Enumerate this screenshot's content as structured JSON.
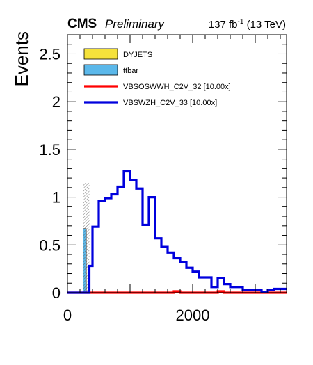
{
  "header": {
    "experiment": "CMS",
    "status": "Preliminary",
    "lumi": "137 fb",
    "lumi_exp": "-1",
    "energy": " (13 TeV)"
  },
  "chart_data": {
    "type": "histogram",
    "ylabel": "Events",
    "xlim": [
      0,
      3500
    ],
    "ylim": [
      0,
      2.7
    ],
    "x_ticks": [
      0,
      2000
    ],
    "y_ticks": [
      0,
      0.5,
      1,
      1.5,
      2,
      2.5
    ],
    "x_tick_labels": [
      "0",
      "2000"
    ],
    "y_tick_labels": [
      "0",
      "0.5",
      "1",
      "1.5",
      "2",
      "2.5"
    ],
    "bin_edges": [
      0,
      100,
      200,
      250,
      300,
      350,
      400,
      500,
      600,
      700,
      800,
      900,
      1000,
      1100,
      1200,
      1300,
      1400,
      1500,
      1600,
      1700,
      1800,
      1900,
      2000,
      2100,
      2200,
      2300,
      2400,
      2500,
      2600,
      2700,
      2800,
      2900,
      3000,
      3100,
      3200,
      3300,
      3400,
      3500
    ],
    "stack": [
      {
        "name": "DYJETS",
        "color": "#f5e23b",
        "values": [
          0,
          0,
          0,
          0,
          0,
          0,
          0,
          0,
          0,
          0,
          0,
          0,
          0,
          0,
          0,
          0,
          0,
          0,
          0,
          0,
          0,
          0,
          0,
          0,
          0,
          0,
          0,
          0,
          0,
          0,
          0,
          0,
          0,
          0,
          0,
          0,
          0
        ]
      },
      {
        "name": "ttbar",
        "color": "#5bb8ea",
        "values": [
          0,
          0,
          0,
          0.67,
          0,
          0,
          0,
          0,
          0,
          0,
          0,
          0,
          0,
          0,
          0,
          0,
          0,
          0,
          0,
          0,
          0,
          0,
          0,
          0,
          0,
          0,
          0,
          0,
          0,
          0,
          0,
          0,
          0,
          0,
          0,
          0,
          0
        ]
      }
    ],
    "uncertainty": {
      "bin_low": 250,
      "bin_high": 350,
      "low": 0,
      "high": 1.15
    },
    "series": [
      {
        "name": "VBSOSWWH_C2V_32 [10.00x]",
        "color": "#ff0000",
        "values": [
          0,
          0,
          0,
          0,
          0,
          0,
          0,
          0,
          0,
          0,
          0,
          0,
          0,
          0,
          0,
          0,
          0,
          0,
          0,
          0.015,
          0,
          0,
          0,
          0,
          0,
          0,
          0.015,
          0,
          0,
          0,
          0,
          0,
          0,
          0,
          0,
          0,
          0
        ]
      },
      {
        "name": "VBSWZH_C2V_33 [10.00x]",
        "color": "#0000dd",
        "values": [
          0,
          0,
          0,
          0,
          0,
          0.28,
          0.69,
          0.96,
          0.99,
          1.03,
          1.11,
          1.27,
          1.18,
          1.09,
          0.71,
          1.0,
          0.57,
          0.48,
          0.42,
          0.36,
          0.32,
          0.26,
          0.22,
          0.16,
          0.16,
          0.06,
          0.15,
          0.09,
          0.06,
          0.06,
          0.03,
          0.03,
          0.03,
          0.01,
          0.03,
          0.04,
          0.04
        ]
      }
    ],
    "legend": {
      "position": "top-left",
      "entries": [
        "DYJETS",
        "ttbar",
        "VBSOSWWH_C2V_32 [10.00x]",
        "VBSWZH_C2V_33 [10.00x]"
      ]
    }
  }
}
